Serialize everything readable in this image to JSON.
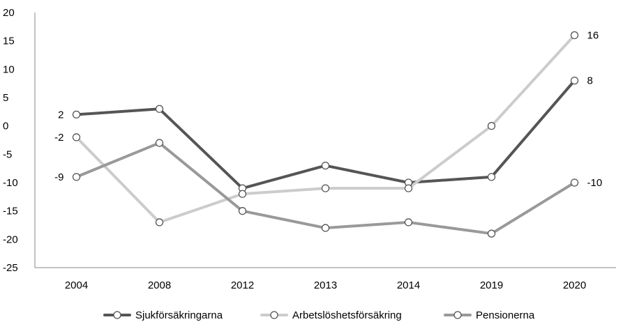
{
  "chart_data": {
    "type": "line",
    "categories": [
      "2004",
      "2008",
      "2012",
      "2013",
      "2014",
      "2019",
      "2020"
    ],
    "ylim": [
      -25,
      20
    ],
    "yticks": [
      20,
      15,
      10,
      5,
      0,
      -5,
      -10,
      -15,
      -20,
      -25
    ],
    "grid": false,
    "legend_position": "bottom",
    "series": [
      {
        "name": "Sjukförsäkringarna",
        "values": [
          2,
          3,
          -11,
          -7,
          -10,
          -9,
          8
        ],
        "color": "#555555",
        "labels": {
          "0": "2",
          "6": "8"
        }
      },
      {
        "name": "Arbetslöshetsförsäkring",
        "values": [
          -2,
          -17,
          -12,
          -11,
          -11,
          0,
          16
        ],
        "color": "#cccccc",
        "labels": {
          "0": "-2",
          "6": "16"
        }
      },
      {
        "name": "Pensionerna",
        "values": [
          -9,
          -3,
          -15,
          -18,
          -17,
          -19,
          -10
        ],
        "color": "#999999",
        "labels": {
          "0": "-9",
          "6": "-10"
        }
      }
    ]
  }
}
